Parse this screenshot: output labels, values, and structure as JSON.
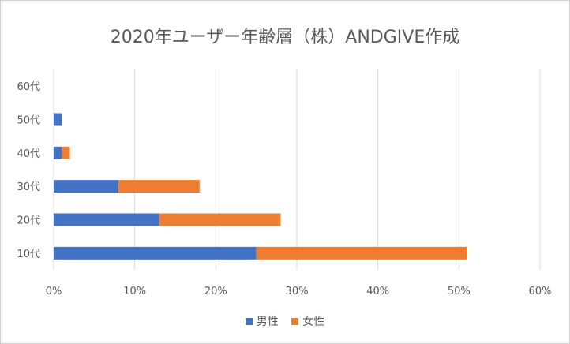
{
  "chart_data": {
    "type": "bar",
    "orientation": "horizontal",
    "stacked": true,
    "title": "2020年ユーザー年齢層（株）ANDGIVE作成",
    "categories": [
      "10代",
      "20代",
      "30代",
      "40代",
      "50代",
      "60代"
    ],
    "series": [
      {
        "name": "男性",
        "color": "#4472C4",
        "values": [
          25,
          13,
          8,
          1,
          1,
          0
        ]
      },
      {
        "name": "女性",
        "color": "#ED7D31",
        "values": [
          26,
          15,
          10,
          1,
          0,
          0
        ]
      }
    ],
    "xticks": [
      "0%",
      "10%",
      "20%",
      "30%",
      "40%",
      "50%",
      "60%"
    ],
    "xlim": [
      0,
      60
    ],
    "grid": true,
    "legend_position": "bottom"
  }
}
